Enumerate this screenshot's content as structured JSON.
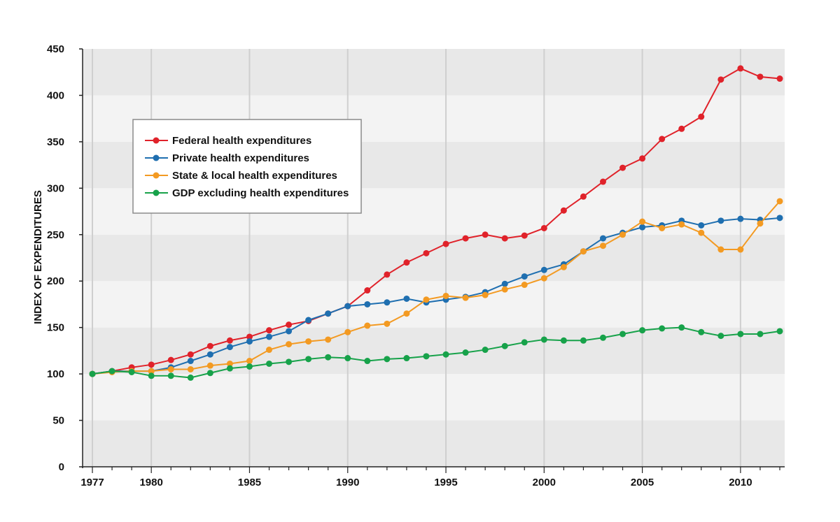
{
  "chart_data": {
    "type": "line",
    "ylabel": "INDEX OF EXPENDITURES",
    "xlabel": "",
    "ylim": [
      0,
      450
    ],
    "xlim": [
      1977,
      2012
    ],
    "y_ticks": [
      "0",
      "50",
      "100",
      "150",
      "200",
      "250",
      "300",
      "350",
      "400",
      "450"
    ],
    "x_ticks": [
      "1977",
      "1980",
      "1985",
      "1990",
      "1995",
      "2000",
      "2005",
      "2010"
    ],
    "legend_position": "upper-left",
    "grid": "horizontal bands",
    "x": [
      1977,
      1978,
      1979,
      1980,
      1981,
      1982,
      1983,
      1984,
      1985,
      1986,
      1987,
      1988,
      1989,
      1990,
      1991,
      1992,
      1993,
      1994,
      1995,
      1996,
      1997,
      1998,
      1999,
      2000,
      2001,
      2002,
      2003,
      2004,
      2005,
      2006,
      2007,
      2008,
      2009,
      2010,
      2011,
      2012
    ],
    "series": [
      {
        "name": "Federal health expenditures",
        "color": "#e0222a",
        "values": [
          100,
          103,
          107,
          110,
          115,
          121,
          130,
          136,
          140,
          147,
          153,
          157,
          165,
          173,
          190,
          207,
          220,
          230,
          240,
          246,
          250,
          246,
          249,
          257,
          276,
          291,
          307,
          322,
          332,
          353,
          364,
          377,
          417,
          429,
          420,
          418
        ]
      },
      {
        "name": "Private health expenditures",
        "color": "#1f6fb0",
        "values": [
          100,
          103,
          103,
          103,
          107,
          114,
          121,
          129,
          135,
          140,
          146,
          158,
          165,
          173,
          175,
          177,
          181,
          177,
          180,
          183,
          188,
          197,
          205,
          212,
          218,
          232,
          246,
          252,
          258,
          260,
          265,
          260,
          265,
          267,
          266,
          268
        ]
      },
      {
        "name": "State & local health expenditures",
        "color": "#f39a22",
        "values": [
          100,
          102,
          103,
          103,
          105,
          105,
          109,
          111,
          114,
          126,
          132,
          135,
          137,
          145,
          152,
          154,
          165,
          180,
          184,
          182,
          185,
          191,
          196,
          203,
          215,
          232,
          238,
          250,
          264,
          257,
          261,
          252,
          234,
          234,
          262,
          286
        ]
      },
      {
        "name": "GDP excluding health expenditures",
        "color": "#17a24a",
        "values": [
          100,
          103,
          102,
          98,
          98,
          96,
          101,
          106,
          108,
          111,
          113,
          116,
          118,
          117,
          114,
          116,
          117,
          119,
          121,
          123,
          126,
          130,
          134,
          137,
          136,
          136,
          139,
          143,
          147,
          149,
          150,
          145,
          141,
          143,
          143,
          146
        ]
      }
    ]
  }
}
